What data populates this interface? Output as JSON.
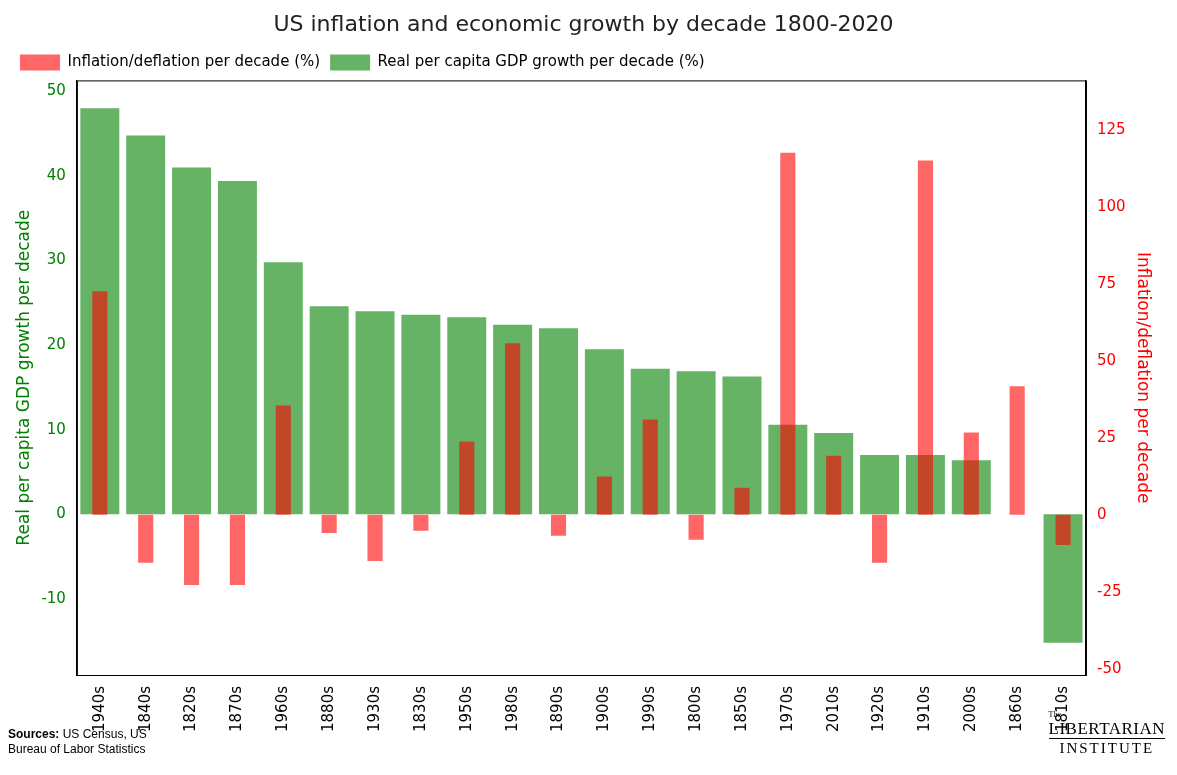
{
  "chart_data": {
    "type": "bar",
    "title": "US inflation and economic growth by decade 1800-2020",
    "categories": [
      "1940s",
      "1840s",
      "1820s",
      "1870s",
      "1960s",
      "1880s",
      "1930s",
      "1830s",
      "1950s",
      "1980s",
      "1890s",
      "1900s",
      "1990s",
      "1800s",
      "1850s",
      "1970s",
      "2010s",
      "1920s",
      "1910s",
      "2000s",
      "1860s",
      "1810s"
    ],
    "series": [
      {
        "name": "Real per capita GDP growth per decade (%)",
        "color": "#008000",
        "axis": "y",
        "values": [
          48,
          44.8,
          41,
          39.4,
          29.8,
          24.6,
          24,
          23.6,
          23.3,
          22.4,
          22,
          19.5,
          17.2,
          16.9,
          16.3,
          10.6,
          9.6,
          7,
          7,
          6.4,
          null,
          -15.2
        ]
      },
      {
        "name": "Inflation/deflation per decade (%)",
        "color": "#ff0000",
        "axis": "y2",
        "values": [
          72.6,
          -15.6,
          -22.8,
          -22.8,
          35.5,
          -5.9,
          -15,
          -5.2,
          23.8,
          55.7,
          -6.8,
          12.4,
          30.9,
          -8.1,
          8.8,
          117.5,
          19.2,
          -15.6,
          115,
          26.7,
          41.7,
          -9.8
        ]
      }
    ],
    "y_label": "Real per capita GDP growth per decade",
    "y2_label": "Inflation/deflation per decade",
    "ylim": [
      -19,
      51.3
    ],
    "yticks": [
      -10,
      0,
      10,
      20,
      30,
      40,
      50
    ],
    "y2lim": [
      -52,
      141
    ],
    "y2ticks": [
      -50,
      -25,
      0,
      25,
      50,
      75,
      100,
      125
    ],
    "grid": false,
    "legend": "upper left",
    "source_label": "Sources:",
    "source": "US Census, US Bureau of Labor Statistics",
    "logo": [
      "The",
      "LIBERTARIAN",
      "INSTITUTE"
    ]
  }
}
